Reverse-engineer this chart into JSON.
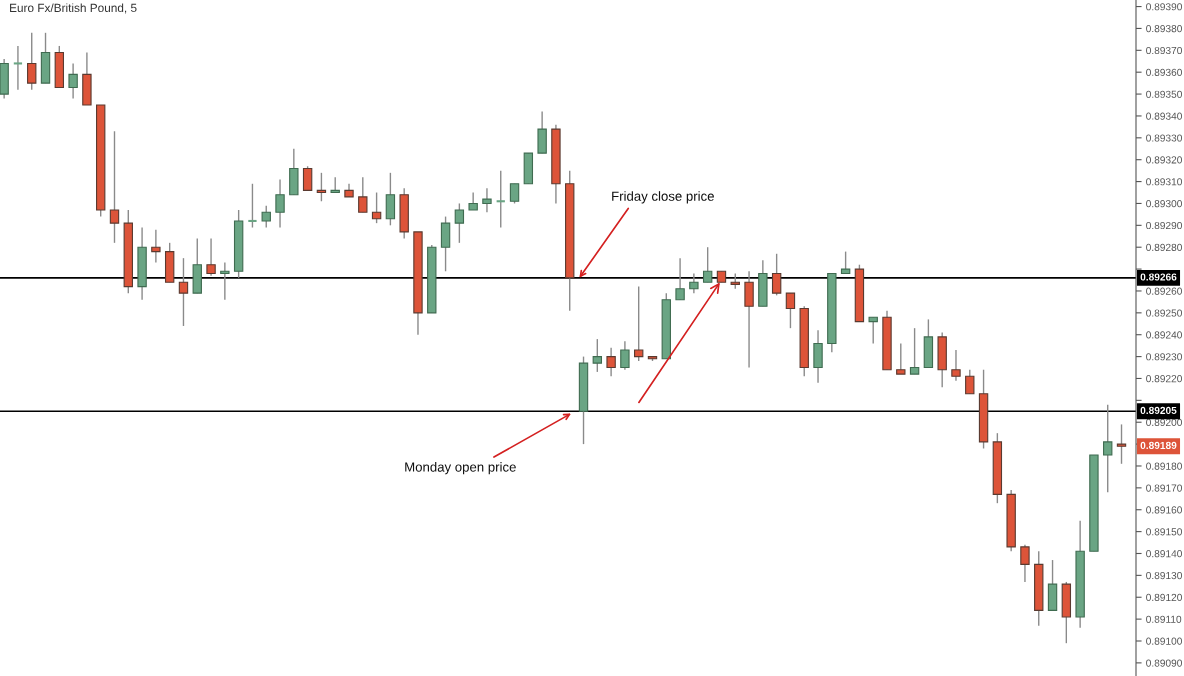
{
  "chart_data": {
    "type": "candlestick",
    "title": "Euro Fx/British Pound, 5",
    "categories": [
      null,
      null,
      null,
      null,
      null,
      null,
      null,
      null,
      null,
      null,
      null,
      null,
      null,
      null,
      null,
      null,
      null,
      null,
      null,
      null,
      null,
      null,
      null,
      null,
      null,
      null,
      null,
      null,
      null,
      null,
      null,
      null,
      null,
      null,
      null,
      null,
      null,
      null,
      null,
      null,
      null,
      null,
      null,
      null,
      null,
      null,
      null,
      null,
      null,
      null,
      null,
      null,
      null,
      null,
      null,
      null,
      null,
      null,
      null,
      null,
      null,
      null,
      null,
      null,
      null,
      null,
      null,
      null,
      null,
      null,
      null,
      null,
      null,
      null,
      null,
      null,
      null,
      null,
      null,
      null,
      null,
      null
    ],
    "ohlc": [
      [
        0.8935,
        0.89366,
        0.89348,
        0.89364
      ],
      [
        0.89364,
        0.89372,
        0.89352,
        0.89364
      ],
      [
        0.89364,
        0.89378,
        0.89352,
        0.89355
      ],
      [
        0.89355,
        0.89378,
        0.89355,
        0.89369
      ],
      [
        0.89369,
        0.89372,
        0.89353,
        0.89353
      ],
      [
        0.89353,
        0.89364,
        0.89348,
        0.89359
      ],
      [
        0.89359,
        0.89369,
        0.89345,
        0.89345
      ],
      [
        0.89345,
        0.89345,
        0.89294,
        0.89297
      ],
      [
        0.89297,
        0.89333,
        0.89282,
        0.89291
      ],
      [
        0.89291,
        0.89297,
        0.89259,
        0.89262
      ],
      [
        0.89262,
        0.89289,
        0.89256,
        0.8928
      ],
      [
        0.8928,
        0.89288,
        0.89273,
        0.89278
      ],
      [
        0.89278,
        0.89282,
        0.89264,
        0.89264
      ],
      [
        0.89264,
        0.89275,
        0.89244,
        0.89259
      ],
      [
        0.89259,
        0.89284,
        0.89259,
        0.89272
      ],
      [
        0.89272,
        0.89284,
        0.89267,
        0.89268
      ],
      [
        0.89268,
        0.89273,
        0.89256,
        0.89269
      ],
      [
        0.89269,
        0.89297,
        0.89266,
        0.89292
      ],
      [
        0.89292,
        0.89309,
        0.89289,
        0.89292
      ],
      [
        0.89292,
        0.89299,
        0.89289,
        0.89296
      ],
      [
        0.89296,
        0.89311,
        0.89289,
        0.89304
      ],
      [
        0.89304,
        0.89325,
        0.89304,
        0.89316
      ],
      [
        0.89316,
        0.89317,
        0.89306,
        0.89306
      ],
      [
        0.89306,
        0.89314,
        0.89301,
        0.89305
      ],
      [
        0.89305,
        0.89312,
        0.89305,
        0.89306
      ],
      [
        0.89306,
        0.89309,
        0.89303,
        0.89303
      ],
      [
        0.89303,
        0.89312,
        0.89296,
        0.89296
      ],
      [
        0.89296,
        0.89305,
        0.89291,
        0.89293
      ],
      [
        0.89293,
        0.89314,
        0.8929,
        0.89304
      ],
      [
        0.89304,
        0.89307,
        0.89284,
        0.89287
      ],
      [
        0.89287,
        0.89287,
        0.8924,
        0.8925
      ],
      [
        0.8925,
        0.89281,
        0.8925,
        0.8928
      ],
      [
        0.8928,
        0.89294,
        0.89269,
        0.89291
      ],
      [
        0.89291,
        0.893,
        0.89282,
        0.89297
      ],
      [
        0.89297,
        0.89305,
        0.89297,
        0.893
      ],
      [
        0.893,
        0.89307,
        0.89296,
        0.89302
      ],
      [
        0.89301,
        0.89315,
        0.89289,
        0.89301
      ],
      [
        0.89301,
        0.89309,
        0.893,
        0.89309
      ],
      [
        0.89309,
        0.89323,
        0.89309,
        0.89323
      ],
      [
        0.89323,
        0.89342,
        0.89323,
        0.89334
      ],
      [
        0.89334,
        0.89336,
        0.893,
        0.89309
      ],
      [
        0.89309,
        0.89315,
        0.89251,
        0.89266
      ],
      [
        0.89205,
        0.8923,
        0.8919,
        0.89227
      ],
      [
        0.89227,
        0.89238,
        0.89223,
        0.8923
      ],
      [
        0.8923,
        0.89234,
        0.89221,
        0.89225
      ],
      [
        0.89225,
        0.89237,
        0.89224,
        0.89233
      ],
      [
        0.89233,
        0.89262,
        0.89228,
        0.8923
      ],
      [
        0.8923,
        0.8923,
        0.89228,
        0.89229
      ],
      [
        0.89229,
        0.89259,
        0.89229,
        0.89256
      ],
      [
        0.89256,
        0.89275,
        0.89256,
        0.89261
      ],
      [
        0.89261,
        0.89268,
        0.89259,
        0.89264
      ],
      [
        0.89264,
        0.8928,
        0.89264,
        0.89269
      ],
      [
        0.89269,
        0.89269,
        0.89264,
        0.89264
      ],
      [
        0.89264,
        0.89268,
        0.89261,
        0.89263
      ],
      [
        0.89264,
        0.89269,
        0.89225,
        0.89253
      ],
      [
        0.89253,
        0.89274,
        0.89253,
        0.89268
      ],
      [
        0.89268,
        0.89277,
        0.89258,
        0.89259
      ],
      [
        0.89259,
        0.89259,
        0.89243,
        0.89252
      ],
      [
        0.89252,
        0.89253,
        0.89221,
        0.89225
      ],
      [
        0.89225,
        0.89242,
        0.89218,
        0.89236
      ],
      [
        0.89236,
        0.89268,
        0.89232,
        0.89268
      ],
      [
        0.89268,
        0.89278,
        0.89268,
        0.8927
      ],
      [
        0.8927,
        0.89272,
        0.89246,
        0.89246
      ],
      [
        0.89246,
        0.89248,
        0.89236,
        0.89248
      ],
      [
        0.89248,
        0.89251,
        0.89224,
        0.89224
      ],
      [
        0.89224,
        0.89236,
        0.89222,
        0.89222
      ],
      [
        0.89222,
        0.89243,
        0.89222,
        0.89225
      ],
      [
        0.89225,
        0.89247,
        0.89225,
        0.89239
      ],
      [
        0.89239,
        0.89241,
        0.89216,
        0.89224
      ],
      [
        0.89224,
        0.89233,
        0.89219,
        0.89221
      ],
      [
        0.89221,
        0.89224,
        0.89213,
        0.89213
      ],
      [
        0.89213,
        0.89224,
        0.89188,
        0.89191
      ],
      [
        0.89191,
        0.89195,
        0.89163,
        0.89167
      ],
      [
        0.89167,
        0.89169,
        0.89141,
        0.89143
      ],
      [
        0.89143,
        0.89144,
        0.89127,
        0.89135
      ],
      [
        0.89135,
        0.89141,
        0.89107,
        0.89114
      ],
      [
        0.89114,
        0.89137,
        0.89114,
        0.89126
      ],
      [
        0.89126,
        0.89127,
        0.89099,
        0.89111
      ],
      [
        0.89111,
        0.89155,
        0.89106,
        0.89141
      ],
      [
        0.89141,
        0.89185,
        0.89141,
        0.89185
      ],
      [
        0.89185,
        0.89208,
        0.89168,
        0.89191
      ],
      [
        0.8919,
        0.89199,
        0.89181,
        0.89189
      ]
    ],
    "colors": [
      "#6aa584",
      "#6aa584",
      "#dd5439",
      "#6aa584",
      "#dd5439",
      "#6aa584",
      "#dd5439",
      "#dd5439",
      "#dd5439",
      "#dd5439",
      "#6aa584",
      "#dd5439",
      "#dd5439",
      "#dd5439",
      "#6aa584",
      "#dd5439",
      "#6aa584",
      "#6aa584",
      "#6aa584",
      "#6aa584",
      "#6aa584",
      "#6aa584",
      "#dd5439",
      "#dd5439",
      "#6aa584",
      "#dd5439",
      "#dd5439",
      "#dd5439",
      "#6aa584",
      "#dd5439",
      "#dd5439",
      "#6aa584",
      "#6aa584",
      "#6aa584",
      "#6aa584",
      "#6aa584",
      "#6aa584",
      "#6aa584",
      "#6aa584",
      "#6aa584",
      "#dd5439",
      "#dd5439",
      "#6aa584",
      "#6aa584",
      "#dd5439",
      "#6aa584",
      "#dd5439",
      "#dd5439",
      "#6aa584",
      "#6aa584",
      "#6aa584",
      "#6aa584",
      "#dd5439",
      "#dd5439",
      "#dd5439",
      "#6aa584",
      "#dd5439",
      "#dd5439",
      "#dd5439",
      "#6aa584",
      "#6aa584",
      "#6aa584",
      "#dd5439",
      "#6aa584",
      "#dd5439",
      "#dd5439",
      "#6aa584",
      "#6aa584",
      "#dd5439",
      "#dd5439",
      "#dd5439",
      "#dd5439",
      "#dd5439",
      "#dd5439",
      "#dd5439",
      "#dd5439",
      "#6aa584",
      "#dd5439",
      "#6aa584",
      "#6aa584",
      "#6aa584",
      "#dd5439"
    ],
    "ylim": [
      0.89084,
      0.89393
    ],
    "yticks": [
      {
        "value": 0.8909,
        "label": "0.89090"
      },
      {
        "value": 0.891,
        "label": "0.89100"
      },
      {
        "value": 0.8911,
        "label": "0.89110"
      },
      {
        "value": 0.8912,
        "label": "0.89120"
      },
      {
        "value": 0.8913,
        "label": "0.89130"
      },
      {
        "value": 0.8914,
        "label": "0.89140"
      },
      {
        "value": 0.8915,
        "label": "0.89150"
      },
      {
        "value": 0.8916,
        "label": "0.89160"
      },
      {
        "value": 0.8917,
        "label": "0.89170"
      },
      {
        "value": 0.8918,
        "label": "0.89180"
      },
      {
        "value": 0.8919,
        "label": null
      },
      {
        "value": 0.892,
        "label": "0.89200"
      },
      {
        "value": 0.8921,
        "label": null
      },
      {
        "value": 0.8922,
        "label": "0.89220"
      },
      {
        "value": 0.8923,
        "label": "0.89230"
      },
      {
        "value": 0.8924,
        "label": "0.89240"
      },
      {
        "value": 0.8925,
        "label": "0.89250"
      },
      {
        "value": 0.8926,
        "label": "0.89260"
      },
      {
        "value": 0.8927,
        "label": null
      },
      {
        "value": 0.8928,
        "label": "0.89280"
      },
      {
        "value": 0.8929,
        "label": "0.89290"
      },
      {
        "value": 0.893,
        "label": "0.89300"
      },
      {
        "value": 0.8931,
        "label": "0.89310"
      },
      {
        "value": 0.8932,
        "label": "0.89320"
      },
      {
        "value": 0.8933,
        "label": "0.89330"
      },
      {
        "value": 0.8934,
        "label": "0.89340"
      },
      {
        "value": 0.8935,
        "label": "0.89350"
      },
      {
        "value": 0.8936,
        "label": "0.89360"
      },
      {
        "value": 0.8937,
        "label": "0.89370"
      },
      {
        "value": 0.8938,
        "label": "0.89380"
      },
      {
        "value": 0.8939,
        "label": "0.89390"
      }
    ],
    "tick_labels": "y",
    "grid": false,
    "ref_lines": [
      {
        "axis": "y",
        "value": 0.89266,
        "label": "0.89266",
        "color": "#000000"
      },
      {
        "axis": "y",
        "value": 0.89205,
        "label": "0.89205",
        "color": "#000000"
      }
    ],
    "annotations": [
      "Friday close price",
      "Monday open price",
      {
        "text": "0.89189",
        "y": 0.89189
      }
    ]
  }
}
